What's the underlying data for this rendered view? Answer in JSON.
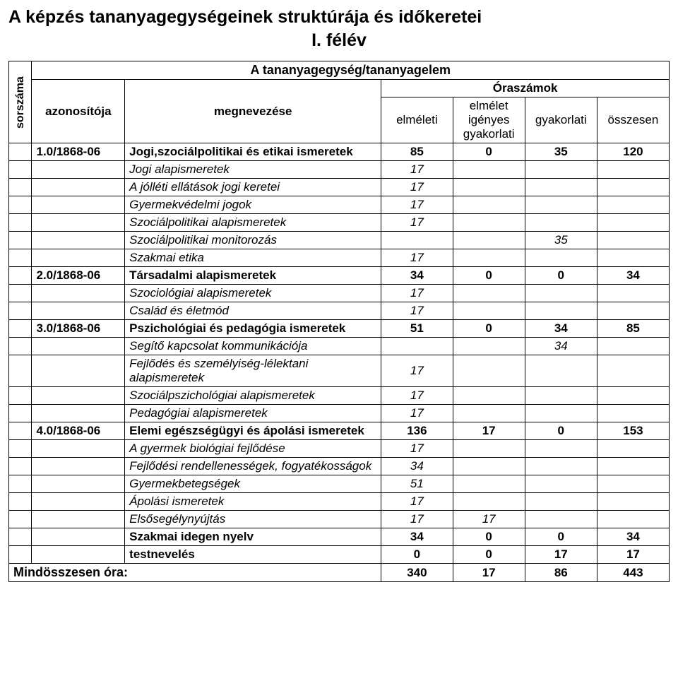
{
  "title": "A képzés tananyagegységeinek struktúrája és időkeretei",
  "subtitle": "I. félév",
  "header": {
    "main": "A tananyagegység/tananyagelem",
    "sorszama": "sorszáma",
    "azonositoja": "azonosítója",
    "megnevezese": "megnevezése",
    "oraszamok": "Óraszámok",
    "elmeleti": "elméleti",
    "elmelet_igenyes_gyakorlati": "elmélet igényes gyakorlati",
    "gyakorlati": "gyakorlati",
    "osszesen": "összesen"
  },
  "rows": [
    {
      "id": "1.0/1868-06",
      "name_bold": "Jogi,szociálpolitikai és etikai ismeretek",
      "c1": "85",
      "c2": "0",
      "c3": "35",
      "c4": "120",
      "idBold": true,
      "nameBold": true,
      "numBold": true
    },
    {
      "name_it": "Jogi alapismeretek",
      "c1": "17",
      "nameItalic": true,
      "numItalic": true
    },
    {
      "name_it": "A jólléti ellátások jogi keretei",
      "c1": "17",
      "nameItalic": true,
      "numItalic": true
    },
    {
      "name_it": "Gyermekvédelmi jogok",
      "c1": "17",
      "nameItalic": true,
      "numItalic": true
    },
    {
      "name_it": "Szociálpolitikai alapismeretek",
      "c1": "17",
      "nameItalic": true,
      "numItalic": true
    },
    {
      "name_it": "Szociálpolitikai monitorozás",
      "c3": "35",
      "nameItalic": true,
      "numItalic": true
    },
    {
      "name_it": "Szakmai etika",
      "c1": "17",
      "nameItalic": true,
      "numItalic": true
    },
    {
      "id": "2.0/1868-06",
      "name_bold": "Társadalmi alapismeretek",
      "c1": "34",
      "c2": "0",
      "c3": "0",
      "c4": "34",
      "idBold": true,
      "nameBold": true,
      "numBold": true
    },
    {
      "name_it": "Szociológiai alapismeretek",
      "c1": "17",
      "nameItalic": true,
      "numItalic": true
    },
    {
      "name_it": "Család és életmód",
      "c1": "17",
      "nameItalic": true,
      "numItalic": true
    },
    {
      "id": "3.0/1868-06",
      "name_bold": "Pszichológiai és pedagógia ismeretek",
      "c1": "51",
      "c2": "0",
      "c3": "34",
      "c4": "85",
      "idBold": true,
      "nameBold": true,
      "numBold": true
    },
    {
      "name_it": "Segítő kapcsolat kommunikációja",
      "c3": "34",
      "nameItalic": true,
      "numItalic": true
    },
    {
      "name_it": "Fejlődés és személyiség-lélektani alapismeretek",
      "c1": "17",
      "nameItalic": true,
      "numItalic": true
    },
    {
      "name_it": "Szociálpszichológiai alapismeretek",
      "c1": "17",
      "nameItalic": true,
      "numItalic": true
    },
    {
      "name_it": "Pedagógiai alapismeretek",
      "c1": "17",
      "nameItalic": true,
      "numItalic": true
    },
    {
      "id": "4.0/1868-06",
      "name_bold": "Elemi egészségügyi és ápolási ismeretek",
      "c1": "136",
      "c2": "17",
      "c3": "0",
      "c4": "153",
      "idBold": true,
      "nameBold": true,
      "numBold": true
    },
    {
      "name_it": "A gyermek biológiai fejlődése",
      "c1": "17",
      "nameItalic": true,
      "numItalic": true
    },
    {
      "name_it": "Fejlődési rendellenességek, fogyatékosságok",
      "c1": "34",
      "nameItalic": true,
      "numItalic": true
    },
    {
      "name_it": "Gyermekbetegségek",
      "c1": "51",
      "nameItalic": true,
      "numItalic": true
    },
    {
      "name_it": "Ápolási ismeretek",
      "c1": "17",
      "nameItalic": true,
      "numItalic": true
    },
    {
      "name_it": "Elsősegélynyújtás",
      "c1": "17",
      "c2": "17",
      "nameItalic": true,
      "numItalic": true
    },
    {
      "name_bold": "Szakmai idegen nyelv",
      "c1": "34",
      "c2": "0",
      "c3": "0",
      "c4": "34",
      "nameBold": true,
      "numBold": true
    },
    {
      "name_bold": "testnevelés",
      "c1": "0",
      "c2": "0",
      "c3": "17",
      "c4": "17",
      "nameBold": true,
      "numBold": true
    }
  ],
  "total": {
    "label": "Mindösszesen óra:",
    "c1": "340",
    "c2": "17",
    "c3": "86",
    "c4": "443"
  }
}
